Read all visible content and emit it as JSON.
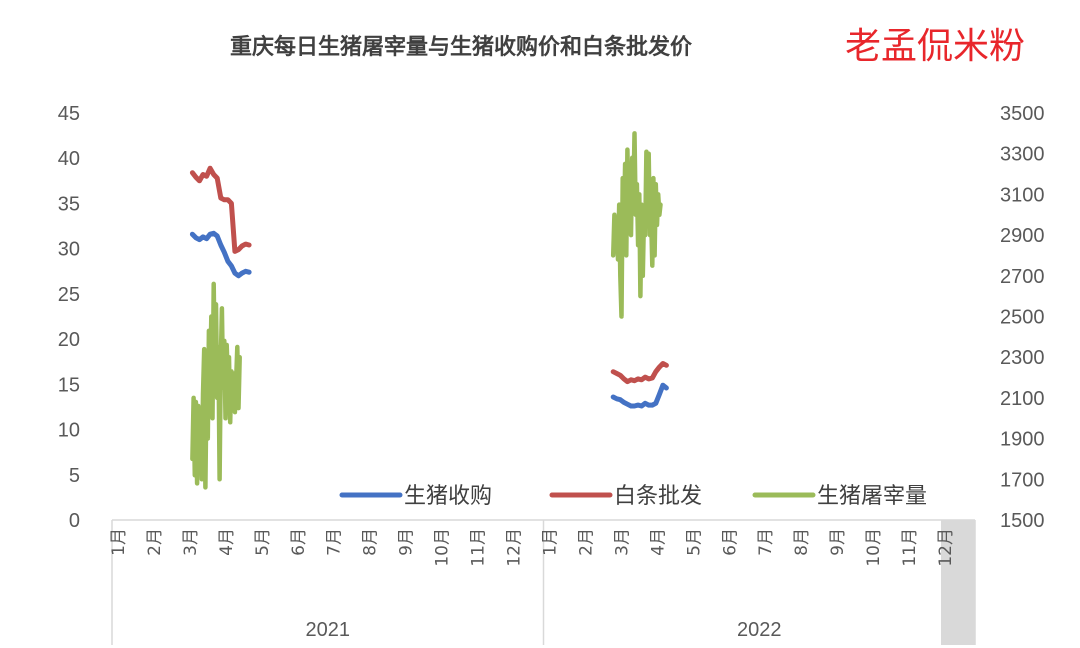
{
  "chart_data": {
    "type": "line",
    "title": "重庆每日生猪屠宰量与生猪收购价和白条批发价",
    "watermark": "老孟侃米粉",
    "y_left": {
      "min": 0,
      "max": 45,
      "ticks": [
        "0",
        "5",
        "10",
        "15",
        "20",
        "25",
        "30",
        "35",
        "40",
        "45"
      ]
    },
    "y_right": {
      "min": 1500,
      "max": 3500,
      "ticks": [
        "1500",
        "1700",
        "1900",
        "2100",
        "2300",
        "2500",
        "2700",
        "2900",
        "3100",
        "3300",
        "3500"
      ]
    },
    "x_months": [
      "1月",
      "2月",
      "3月",
      "4月",
      "5月",
      "6月",
      "7月",
      "8月",
      "9月",
      "10月",
      "11月",
      "12月"
    ],
    "x_years": [
      "2021",
      "2022"
    ],
    "legend": [
      {
        "name": "生猪收购",
        "color": "#4472c4"
      },
      {
        "name": "白条批发",
        "color": "#c0504d"
      },
      {
        "name": "生猪屠宰量",
        "color": "#9bbb59"
      }
    ],
    "series": [
      {
        "name": "生猪收购",
        "axis": "left",
        "color": "#4472c4",
        "points": [
          [
            "2021-03-10",
            31.6
          ],
          [
            "2021-03-13",
            31.2
          ],
          [
            "2021-03-16",
            31.0
          ],
          [
            "2021-03-19",
            31.3
          ],
          [
            "2021-03-22",
            31.1
          ],
          [
            "2021-03-25",
            31.6
          ],
          [
            "2021-03-28",
            31.7
          ],
          [
            "2021-03-31",
            31.4
          ],
          [
            "2021-04-03",
            30.4
          ],
          [
            "2021-04-06",
            29.6
          ],
          [
            "2021-04-09",
            28.6
          ],
          [
            "2021-04-12",
            28.1
          ],
          [
            "2021-04-15",
            27.3
          ],
          [
            "2021-04-18",
            27.0
          ],
          [
            "2021-04-21",
            27.3
          ],
          [
            "2021-04-24",
            27.5
          ],
          [
            "2021-04-27",
            27.4
          ]
        ]
      },
      {
        "name": "白条批发",
        "axis": "left",
        "color": "#c0504d",
        "points": [
          [
            "2021-03-10",
            38.4
          ],
          [
            "2021-03-13",
            37.9
          ],
          [
            "2021-03-16",
            37.5
          ],
          [
            "2021-03-19",
            38.2
          ],
          [
            "2021-03-22",
            38.0
          ],
          [
            "2021-03-25",
            38.9
          ],
          [
            "2021-03-28",
            38.2
          ],
          [
            "2021-03-31",
            37.8
          ],
          [
            "2021-04-03",
            35.6
          ],
          [
            "2021-04-06",
            35.4
          ],
          [
            "2021-04-09",
            35.4
          ],
          [
            "2021-04-12",
            35.0
          ],
          [
            "2021-04-15",
            29.7
          ],
          [
            "2021-04-18",
            29.9
          ],
          [
            "2021-04-21",
            30.3
          ],
          [
            "2021-04-24",
            30.5
          ],
          [
            "2021-04-27",
            30.4
          ]
        ]
      },
      {
        "name": "生猪屠宰量",
        "axis": "right",
        "color": "#9bbb59",
        "points": [
          [
            "2021-03-10",
            1800
          ],
          [
            "2021-03-11",
            2100
          ],
          [
            "2021-03-12",
            1720
          ],
          [
            "2021-03-13",
            2080
          ],
          [
            "2021-03-14",
            1680
          ],
          [
            "2021-03-15",
            2060
          ],
          [
            "2021-03-16",
            1780
          ],
          [
            "2021-03-17",
            2040
          ],
          [
            "2021-03-18",
            1700
          ],
          [
            "2021-03-19",
            2120
          ],
          [
            "2021-03-20",
            2340
          ],
          [
            "2021-03-21",
            1660
          ],
          [
            "2021-03-22",
            2200
          ],
          [
            "2021-03-23",
            1900
          ],
          [
            "2021-03-24",
            2430
          ],
          [
            "2021-03-25",
            2150
          ],
          [
            "2021-03-26",
            2500
          ],
          [
            "2021-03-27",
            2000
          ],
          [
            "2021-03-28",
            2660
          ],
          [
            "2021-03-29",
            2200
          ],
          [
            "2021-03-30",
            2560
          ],
          [
            "2021-03-31",
            2100
          ],
          [
            "2021-04-01",
            2350
          ],
          [
            "2021-04-02",
            1700
          ],
          [
            "2021-04-03",
            2280
          ],
          [
            "2021-04-04",
            2540
          ],
          [
            "2021-04-05",
            2150
          ],
          [
            "2021-04-06",
            2380
          ],
          [
            "2021-04-07",
            2000
          ],
          [
            "2021-04-08",
            2360
          ],
          [
            "2021-04-09",
            2180
          ],
          [
            "2021-04-10",
            2300
          ],
          [
            "2021-04-11",
            1980
          ],
          [
            "2021-04-12",
            2230
          ],
          [
            "2021-04-13",
            2050
          ],
          [
            "2021-04-14",
            2220
          ],
          [
            "2021-04-15",
            2030
          ],
          [
            "2021-04-16",
            2180
          ],
          [
            "2021-04-17",
            2350
          ],
          [
            "2021-04-18",
            2050
          ],
          [
            "2021-04-19",
            2300
          ]
        ]
      },
      {
        "name": "生猪收购",
        "axis": "left",
        "color": "#4472c4",
        "points": [
          [
            "2022-03-01",
            13.6
          ],
          [
            "2022-03-04",
            13.4
          ],
          [
            "2022-03-07",
            13.3
          ],
          [
            "2022-03-10",
            13.0
          ],
          [
            "2022-03-13",
            12.8
          ],
          [
            "2022-03-16",
            12.6
          ],
          [
            "2022-03-19",
            12.6
          ],
          [
            "2022-03-22",
            12.7
          ],
          [
            "2022-03-25",
            12.6
          ],
          [
            "2022-03-28",
            12.9
          ],
          [
            "2022-03-31",
            12.7
          ],
          [
            "2022-04-03",
            12.7
          ],
          [
            "2022-04-06",
            12.9
          ],
          [
            "2022-04-09",
            13.9
          ],
          [
            "2022-04-12",
            14.9
          ],
          [
            "2022-04-15",
            14.6
          ]
        ]
      },
      {
        "name": "白条批发",
        "axis": "left",
        "color": "#c0504d",
        "points": [
          [
            "2022-03-01",
            16.4
          ],
          [
            "2022-03-04",
            16.2
          ],
          [
            "2022-03-07",
            16.0
          ],
          [
            "2022-03-10",
            15.6
          ],
          [
            "2022-03-13",
            15.3
          ],
          [
            "2022-03-16",
            15.5
          ],
          [
            "2022-03-19",
            15.4
          ],
          [
            "2022-03-22",
            15.6
          ],
          [
            "2022-03-25",
            15.5
          ],
          [
            "2022-03-28",
            15.8
          ],
          [
            "2022-03-31",
            15.6
          ],
          [
            "2022-04-03",
            15.7
          ],
          [
            "2022-04-06",
            16.4
          ],
          [
            "2022-04-09",
            16.9
          ],
          [
            "2022-04-12",
            17.3
          ],
          [
            "2022-04-15",
            17.1
          ]
        ]
      },
      {
        "name": "生猪屠宰量",
        "axis": "right",
        "color": "#9bbb59",
        "points": [
          [
            "2022-03-01",
            2800
          ],
          [
            "2022-03-02",
            3000
          ],
          [
            "2022-03-03",
            2900
          ],
          [
            "2022-03-04",
            2940
          ],
          [
            "2022-03-05",
            2780
          ],
          [
            "2022-03-06",
            3050
          ],
          [
            "2022-03-07",
            2700
          ],
          [
            "2022-03-08",
            2500
          ],
          [
            "2022-03-09",
            3180
          ],
          [
            "2022-03-10",
            2900
          ],
          [
            "2022-03-11",
            3250
          ],
          [
            "2022-03-12",
            2800
          ],
          [
            "2022-03-13",
            3320
          ],
          [
            "2022-03-14",
            3000
          ],
          [
            "2022-03-15",
            3100
          ],
          [
            "2022-03-16",
            2900
          ],
          [
            "2022-03-17",
            3280
          ],
          [
            "2022-03-18",
            3050
          ],
          [
            "2022-03-19",
            3400
          ],
          [
            "2022-03-20",
            3000
          ],
          [
            "2022-03-21",
            3150
          ],
          [
            "2022-03-22",
            2850
          ],
          [
            "2022-03-23",
            3100
          ],
          [
            "2022-03-24",
            2600
          ],
          [
            "2022-03-25",
            3050
          ],
          [
            "2022-03-26",
            2700
          ],
          [
            "2022-03-27",
            3000
          ],
          [
            "2022-03-28",
            2900
          ],
          [
            "2022-03-29",
            3310
          ],
          [
            "2022-03-30",
            3100
          ],
          [
            "2022-03-31",
            3300
          ],
          [
            "2022-04-01",
            2900
          ],
          [
            "2022-04-02",
            3000
          ],
          [
            "2022-04-03",
            2750
          ],
          [
            "2022-04-04",
            3180
          ],
          [
            "2022-04-05",
            2800
          ],
          [
            "2022-04-06",
            3150
          ],
          [
            "2022-04-07",
            2950
          ],
          [
            "2022-04-08",
            3100
          ],
          [
            "2022-04-09",
            3000
          ],
          [
            "2022-04-10",
            3050
          ]
        ]
      }
    ]
  }
}
